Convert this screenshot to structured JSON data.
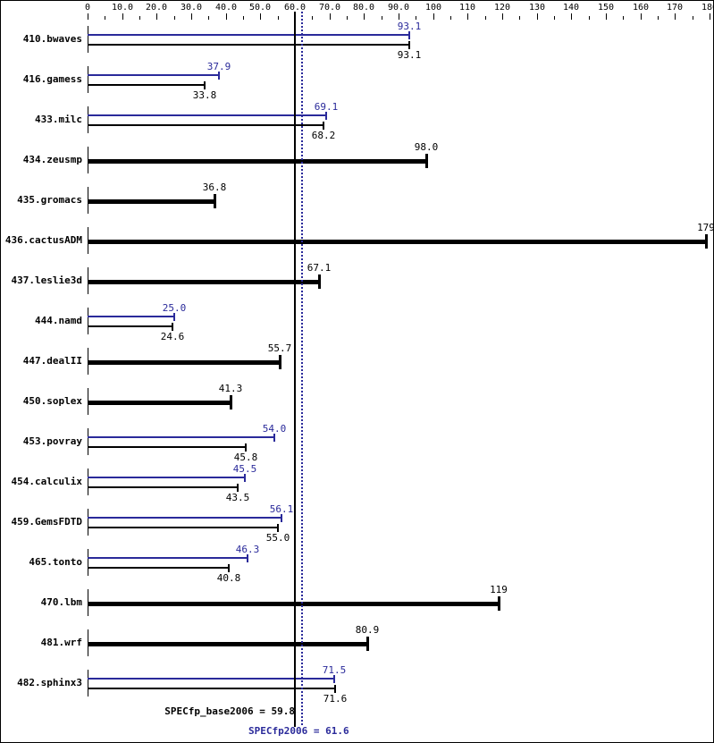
{
  "chart_data": {
    "type": "bar",
    "orientation": "horizontal",
    "title": "",
    "xlabel": "",
    "ylabel": "",
    "xlim": [
      0,
      180
    ],
    "x_ticks": [
      "0",
      "10.0",
      "20.0",
      "30.0",
      "40.0",
      "50.0",
      "60.0",
      "70.0",
      "80.0",
      "90.0",
      "100",
      "110",
      "120",
      "130",
      "140",
      "150",
      "160",
      "170",
      "180"
    ],
    "grid": false,
    "legend": null,
    "categories": [
      "410.bwaves",
      "416.gamess",
      "433.milc",
      "434.zeusmp",
      "435.gromacs",
      "436.cactusADM",
      "437.leslie3d",
      "444.namd",
      "447.dealII",
      "450.soplex",
      "453.povray",
      "454.calculix",
      "459.GemsFDTD",
      "465.tonto",
      "470.lbm",
      "481.wrf",
      "482.sphinx3"
    ],
    "series": [
      {
        "name": "peak",
        "color": "#2a2a9a",
        "values": [
          93.1,
          37.9,
          69.1,
          null,
          null,
          null,
          null,
          25.0,
          null,
          null,
          54.0,
          45.5,
          56.1,
          46.3,
          null,
          null,
          71.5
        ]
      },
      {
        "name": "base",
        "color": "#000000",
        "values": [
          93.1,
          33.8,
          68.2,
          98.0,
          36.8,
          179,
          67.1,
          24.6,
          55.7,
          41.3,
          45.8,
          43.5,
          55.0,
          40.8,
          119,
          80.9,
          71.6
        ]
      }
    ],
    "reference_lines": [
      {
        "name": "SPECfp_base2006",
        "value": 59.8,
        "label": "SPECfp_base2006 = 59.8",
        "style": "solid",
        "color": "#000000"
      },
      {
        "name": "SPECfp2006",
        "value": 61.6,
        "label": "SPECfp2006 = 61.6",
        "style": "dotted",
        "color": "#2a2a9a"
      }
    ]
  },
  "rows": [
    {
      "label": "410.bwaves",
      "peak": 93.1,
      "peak_label": "93.1",
      "base": 93.1,
      "base_label": "93.1",
      "single": false
    },
    {
      "label": "416.gamess",
      "peak": 37.9,
      "peak_label": "37.9",
      "base": 33.8,
      "base_label": "33.8",
      "single": false
    },
    {
      "label": "433.milc",
      "peak": 69.1,
      "peak_label": "69.1",
      "base": 68.2,
      "base_label": "68.2",
      "single": false
    },
    {
      "label": "434.zeusmp",
      "base": 98.0,
      "base_label": "98.0",
      "single": true
    },
    {
      "label": "435.gromacs",
      "base": 36.8,
      "base_label": "36.8",
      "single": true
    },
    {
      "label": "436.cactusADM",
      "base": 179,
      "base_label": "179",
      "single": true
    },
    {
      "label": "437.leslie3d",
      "base": 67.1,
      "base_label": "67.1",
      "single": true
    },
    {
      "label": "444.namd",
      "peak": 25.0,
      "peak_label": "25.0",
      "base": 24.6,
      "base_label": "24.6",
      "single": false
    },
    {
      "label": "447.dealII",
      "base": 55.7,
      "base_label": "55.7",
      "single": true
    },
    {
      "label": "450.soplex",
      "base": 41.3,
      "base_label": "41.3",
      "single": true
    },
    {
      "label": "453.povray",
      "peak": 54.0,
      "peak_label": "54.0",
      "base": 45.8,
      "base_label": "45.8",
      "single": false
    },
    {
      "label": "454.calculix",
      "peak": 45.5,
      "peak_label": "45.5",
      "base": 43.5,
      "base_label": "43.5",
      "single": false
    },
    {
      "label": "459.GemsFDTD",
      "peak": 56.1,
      "peak_label": "56.1",
      "base": 55.0,
      "base_label": "55.0",
      "single": false
    },
    {
      "label": "465.tonto",
      "peak": 46.3,
      "peak_label": "46.3",
      "base": 40.8,
      "base_label": "40.8",
      "single": false
    },
    {
      "label": "470.lbm",
      "base": 119,
      "base_label": "119",
      "single": true
    },
    {
      "label": "481.wrf",
      "base": 80.9,
      "base_label": "80.9",
      "single": true
    },
    {
      "label": "482.sphinx3",
      "peak": 71.5,
      "peak_label": "71.5",
      "base": 71.6,
      "base_label": "71.6",
      "single": false
    }
  ],
  "summary": {
    "base_label": "SPECfp_base2006 = 59.8",
    "peak_label": "SPECfp2006 = 61.6"
  }
}
